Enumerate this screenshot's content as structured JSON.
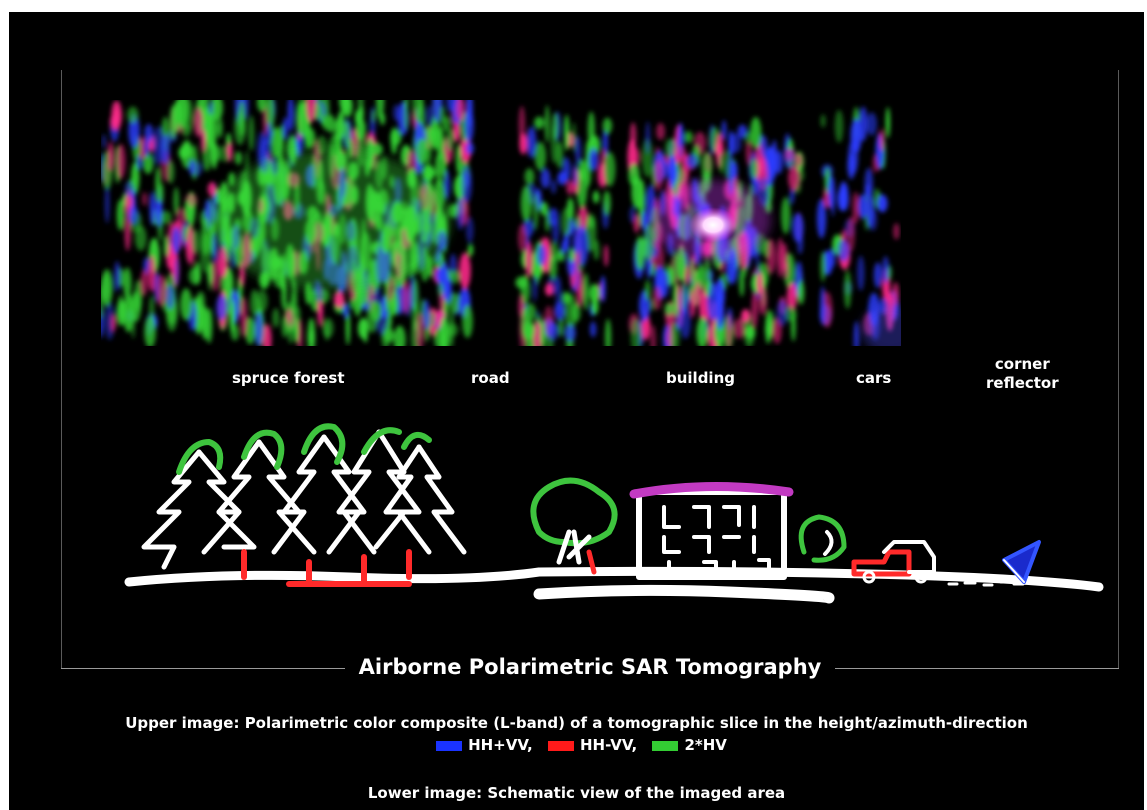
{
  "labels": {
    "spruce_forest": "spruce forest",
    "road": "road",
    "building": "building",
    "cars": "cars",
    "corner_reflector": "corner\nreflector"
  },
  "title": "Airborne Polarimetric SAR Tomography",
  "caption_upper": "Upper image: Polarimetric color composite (L-band) of a tomographic slice in the height/azimuth-direction",
  "legend": [
    {
      "label": "HH+VV,",
      "color": "#1a33ff"
    },
    {
      "label": "HH-VV,",
      "color": "#ff1a1a"
    },
    {
      "label": "2*HV",
      "color": "#33cc33"
    }
  ],
  "caption_lower": "Lower image: Schematic view of the imaged area"
}
